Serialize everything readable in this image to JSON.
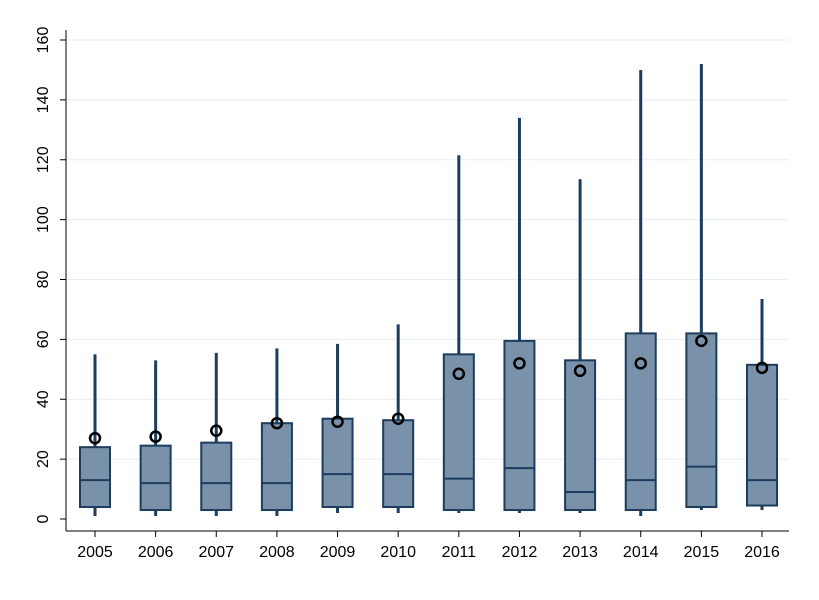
{
  "chart_data": {
    "type": "box",
    "title": "",
    "xlabel": "",
    "ylabel": "",
    "categories": [
      "2005",
      "2006",
      "2007",
      "2008",
      "2009",
      "2010",
      "2011",
      "2012",
      "2013",
      "2014",
      "2015",
      "2016"
    ],
    "boxes": [
      {
        "min": 1,
        "q1": 4,
        "median": 13,
        "q3": 24,
        "max": 55,
        "mean": 27
      },
      {
        "min": 1,
        "q1": 3,
        "median": 12,
        "q3": 24.5,
        "max": 53,
        "mean": 27.5
      },
      {
        "min": 1,
        "q1": 3,
        "median": 12,
        "q3": 25.5,
        "max": 55.5,
        "mean": 29.5
      },
      {
        "min": 1,
        "q1": 3,
        "median": 12,
        "q3": 32,
        "max": 57,
        "mean": 32
      },
      {
        "min": 2,
        "q1": 4,
        "median": 15,
        "q3": 33.5,
        "max": 58.5,
        "mean": 32.5
      },
      {
        "min": 2,
        "q1": 4,
        "median": 15,
        "q3": 33,
        "max": 65,
        "mean": 33.5
      },
      {
        "min": 2,
        "q1": 3,
        "median": 13.5,
        "q3": 55,
        "max": 121.5,
        "mean": 48.5
      },
      {
        "min": 2,
        "q1": 3,
        "median": 17,
        "q3": 59.5,
        "max": 134,
        "mean": 52
      },
      {
        "min": 2,
        "q1": 3,
        "median": 9,
        "q3": 53,
        "max": 113.5,
        "mean": 49.5
      },
      {
        "min": 1,
        "q1": 3,
        "median": 13,
        "q3": 62,
        "max": 150,
        "mean": 52
      },
      {
        "min": 3,
        "q1": 4,
        "median": 17.5,
        "q3": 62,
        "max": 152,
        "mean": 59.5
      },
      {
        "min": 3,
        "q1": 4.5,
        "median": 13,
        "q3": 51.5,
        "max": 73.5,
        "mean": 50.5
      }
    ],
    "ylim": [
      0,
      160
    ],
    "yticks": [
      "0",
      "20",
      "40",
      "60",
      "80",
      "100",
      "120",
      "140",
      "160"
    ],
    "grid": true,
    "legend": "none",
    "colors": {
      "box_fill": "#7a91aa",
      "box_stroke": "#1c3d5e",
      "whisker": "#1c3d5e",
      "mean_marker": "#000000",
      "grid": "#e9eef1"
    }
  }
}
